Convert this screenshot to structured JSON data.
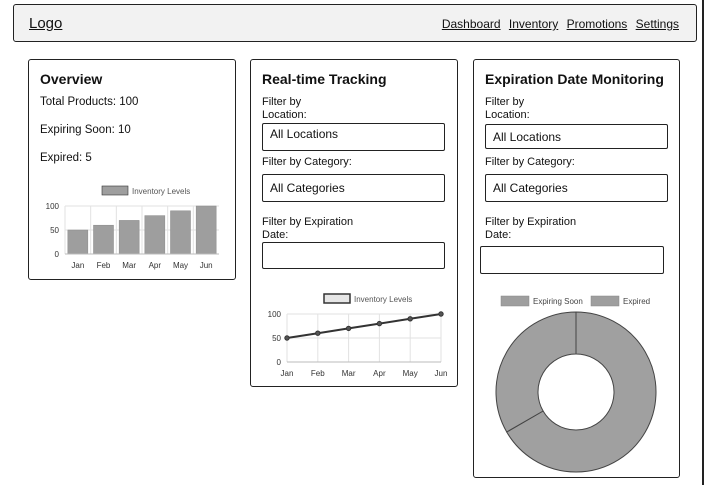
{
  "header": {
    "logo": "Logo",
    "nav": [
      "Dashboard",
      "Inventory",
      "Promotions",
      "Settings"
    ]
  },
  "overview": {
    "title": "Overview",
    "total": "Total Products: 100",
    "expiring": "Expiring Soon: 10",
    "expired": "Expired: 5"
  },
  "tracking": {
    "title": "Real-time Tracking",
    "location_label_1": "Filter by",
    "location_label_2": "Location:",
    "location_value": "All Locations",
    "category_label": "Filter by Category:",
    "category_value": "All Categories",
    "expiration_label_1": "Filter by Expiration",
    "expiration_label_2": "Date:",
    "expiration_value": ""
  },
  "expiration": {
    "title": "Expiration Date Monitoring",
    "location_label_1": "Filter by",
    "location_label_2": "Location:",
    "location_value": "All Locations",
    "category_label": "Filter by Category:",
    "category_value": "All Categories",
    "expiration_label_1": "Filter by Expiration",
    "expiration_label_2": "Date:",
    "expiration_value": ""
  },
  "colors": {
    "border": "#222222",
    "bar": "#9e9e9e",
    "donut": "#a0a0a0"
  },
  "chart_data": [
    {
      "type": "bar",
      "legend": "Inventory Levels",
      "categories": [
        "Jan",
        "Feb",
        "Mar",
        "Apr",
        "May",
        "Jun"
      ],
      "values": [
        50,
        60,
        70,
        80,
        90,
        100
      ],
      "yticks": [
        "0",
        "50",
        "100"
      ],
      "ylim": [
        0,
        100
      ],
      "grid": true
    },
    {
      "type": "line",
      "legend": "Inventory Levels",
      "categories": [
        "Jan",
        "Feb",
        "Mar",
        "Apr",
        "May",
        "Jun"
      ],
      "values": [
        50,
        60,
        70,
        80,
        90,
        100
      ],
      "yticks": [
        "0",
        "50",
        "100"
      ],
      "ylim": [
        0,
        100
      ],
      "grid": true
    },
    {
      "type": "pie",
      "legend": [
        "Expiring Soon",
        "Expired"
      ],
      "values": [
        10,
        5
      ],
      "hole": true
    }
  ]
}
